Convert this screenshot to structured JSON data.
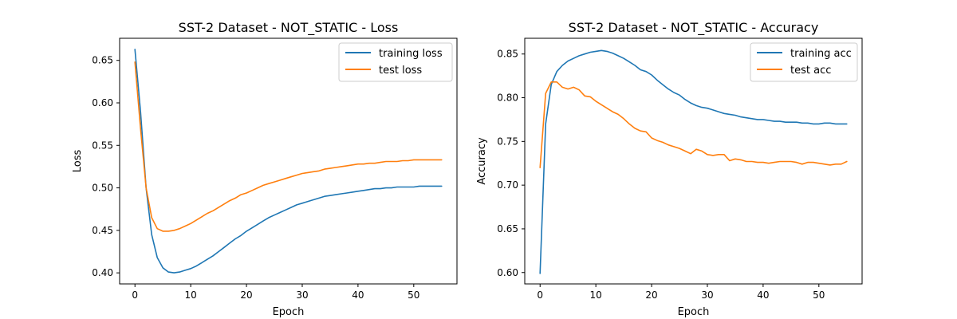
{
  "colors": {
    "series_1": "#1f77b4",
    "series_2": "#ff7f0e",
    "axes": "#000000",
    "legend_border": "#cccccc",
    "background": "#ffffff"
  },
  "chart_data": [
    {
      "type": "line",
      "title": "SST-2 Dataset - NOT_STATIC - Loss",
      "xlabel": "Epoch",
      "ylabel": "Loss",
      "xlim": [
        -2.75,
        57.75
      ],
      "ylim": [
        0.387,
        0.676
      ],
      "xticks": [
        0,
        10,
        20,
        30,
        40,
        50
      ],
      "yticks": [
        0.4,
        0.45,
        0.5,
        0.55,
        0.6,
        0.65
      ],
      "xtick_labels": [
        "0",
        "10",
        "20",
        "30",
        "40",
        "50"
      ],
      "ytick_labels": [
        "0.40",
        "0.45",
        "0.50",
        "0.55",
        "0.60",
        "0.65"
      ],
      "grid": false,
      "legend_position": "top-right",
      "series": [
        {
          "name": "training loss",
          "color": "#1f77b4",
          "x": [
            0,
            1,
            2,
            3,
            4,
            5,
            6,
            7,
            8,
            9,
            10,
            11,
            12,
            13,
            14,
            15,
            16,
            17,
            18,
            19,
            20,
            21,
            22,
            23,
            24,
            25,
            26,
            27,
            28,
            29,
            30,
            31,
            32,
            33,
            34,
            35,
            36,
            37,
            38,
            39,
            40,
            41,
            42,
            43,
            44,
            45,
            46,
            47,
            48,
            49,
            50,
            51,
            52,
            53,
            54,
            55
          ],
          "y": [
            0.663,
            0.59,
            0.5,
            0.445,
            0.418,
            0.406,
            0.401,
            0.4,
            0.401,
            0.403,
            0.405,
            0.408,
            0.412,
            0.416,
            0.42,
            0.425,
            0.43,
            0.435,
            0.44,
            0.444,
            0.449,
            0.453,
            0.457,
            0.461,
            0.465,
            0.468,
            0.471,
            0.474,
            0.477,
            0.48,
            0.482,
            0.484,
            0.486,
            0.488,
            0.49,
            0.491,
            0.492,
            0.493,
            0.494,
            0.495,
            0.496,
            0.497,
            0.498,
            0.499,
            0.499,
            0.5,
            0.5,
            0.501,
            0.501,
            0.501,
            0.501,
            0.502,
            0.502,
            0.502,
            0.502,
            0.502
          ]
        },
        {
          "name": "test loss",
          "color": "#ff7f0e",
          "x": [
            0,
            1,
            2,
            3,
            4,
            5,
            6,
            7,
            8,
            9,
            10,
            11,
            12,
            13,
            14,
            15,
            16,
            17,
            18,
            19,
            20,
            21,
            22,
            23,
            24,
            25,
            26,
            27,
            28,
            29,
            30,
            31,
            32,
            33,
            34,
            35,
            36,
            37,
            38,
            39,
            40,
            41,
            42,
            43,
            44,
            45,
            46,
            47,
            48,
            49,
            50,
            51,
            52,
            53,
            54,
            55
          ],
          "y": [
            0.648,
            0.57,
            0.5,
            0.465,
            0.452,
            0.449,
            0.449,
            0.45,
            0.452,
            0.455,
            0.458,
            0.462,
            0.466,
            0.47,
            0.473,
            0.477,
            0.481,
            0.485,
            0.488,
            0.492,
            0.494,
            0.497,
            0.5,
            0.503,
            0.505,
            0.507,
            0.509,
            0.511,
            0.513,
            0.515,
            0.517,
            0.518,
            0.519,
            0.52,
            0.522,
            0.523,
            0.524,
            0.525,
            0.526,
            0.527,
            0.528,
            0.528,
            0.529,
            0.529,
            0.53,
            0.531,
            0.531,
            0.531,
            0.532,
            0.532,
            0.533,
            0.533,
            0.533,
            0.533,
            0.533,
            0.533
          ]
        }
      ]
    },
    {
      "type": "line",
      "title": "SST-2 Dataset - NOT_STATIC - Accuracy",
      "xlabel": "Epoch",
      "ylabel": "Accuracy",
      "xlim": [
        -2.75,
        57.75
      ],
      "ylim": [
        0.587,
        0.868
      ],
      "xticks": [
        0,
        10,
        20,
        30,
        40,
        50
      ],
      "yticks": [
        0.6,
        0.65,
        0.7,
        0.75,
        0.8,
        0.85
      ],
      "xtick_labels": [
        "0",
        "10",
        "20",
        "30",
        "40",
        "50"
      ],
      "ytick_labels": [
        "0.60",
        "0.65",
        "0.70",
        "0.75",
        "0.80",
        "0.85"
      ],
      "grid": false,
      "legend_position": "top-right",
      "series": [
        {
          "name": "training acc",
          "color": "#1f77b4",
          "x": [
            0,
            1,
            2,
            3,
            4,
            5,
            6,
            7,
            8,
            9,
            10,
            11,
            12,
            13,
            14,
            15,
            16,
            17,
            18,
            19,
            20,
            21,
            22,
            23,
            24,
            25,
            26,
            27,
            28,
            29,
            30,
            31,
            32,
            33,
            34,
            35,
            36,
            37,
            38,
            39,
            40,
            41,
            42,
            43,
            44,
            45,
            46,
            47,
            48,
            49,
            50,
            51,
            52,
            53,
            54,
            55
          ],
          "y": [
            0.599,
            0.77,
            0.815,
            0.83,
            0.837,
            0.842,
            0.845,
            0.848,
            0.85,
            0.852,
            0.853,
            0.854,
            0.853,
            0.851,
            0.848,
            0.845,
            0.841,
            0.837,
            0.832,
            0.83,
            0.826,
            0.82,
            0.815,
            0.81,
            0.806,
            0.803,
            0.798,
            0.794,
            0.791,
            0.789,
            0.788,
            0.786,
            0.784,
            0.782,
            0.781,
            0.78,
            0.778,
            0.777,
            0.776,
            0.775,
            0.775,
            0.774,
            0.773,
            0.773,
            0.772,
            0.772,
            0.772,
            0.771,
            0.771,
            0.77,
            0.77,
            0.771,
            0.771,
            0.77,
            0.77,
            0.77
          ]
        },
        {
          "name": "test acc",
          "color": "#ff7f0e",
          "x": [
            0,
            1,
            2,
            3,
            4,
            5,
            6,
            7,
            8,
            9,
            10,
            11,
            12,
            13,
            14,
            15,
            16,
            17,
            18,
            19,
            20,
            21,
            22,
            23,
            24,
            25,
            26,
            27,
            28,
            29,
            30,
            31,
            32,
            33,
            34,
            35,
            36,
            37,
            38,
            39,
            40,
            41,
            42,
            43,
            44,
            45,
            46,
            47,
            48,
            49,
            50,
            51,
            52,
            53,
            54,
            55
          ],
          "y": [
            0.72,
            0.805,
            0.818,
            0.818,
            0.812,
            0.81,
            0.812,
            0.809,
            0.802,
            0.801,
            0.796,
            0.792,
            0.788,
            0.784,
            0.781,
            0.776,
            0.77,
            0.765,
            0.762,
            0.761,
            0.754,
            0.751,
            0.749,
            0.746,
            0.744,
            0.742,
            0.739,
            0.736,
            0.741,
            0.739,
            0.735,
            0.734,
            0.735,
            0.735,
            0.728,
            0.73,
            0.729,
            0.727,
            0.727,
            0.726,
            0.726,
            0.725,
            0.726,
            0.727,
            0.727,
            0.727,
            0.726,
            0.724,
            0.726,
            0.726,
            0.725,
            0.724,
            0.723,
            0.724,
            0.724,
            0.727
          ]
        }
      ]
    }
  ]
}
